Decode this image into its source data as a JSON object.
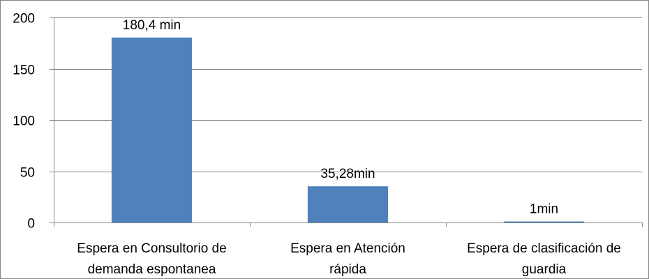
{
  "chart_data": {
    "type": "bar",
    "title": "",
    "xlabel": "",
    "ylabel": "",
    "ylim": [
      0,
      200
    ],
    "yticks": [
      0,
      50,
      100,
      150,
      200
    ],
    "grid": true,
    "legend": "none",
    "bar_color": "#4f81bd",
    "categories": [
      [
        "Espera en Consultorio de",
        "demanda espontanea"
      ],
      [
        "Espera en Atención",
        "rápida"
      ],
      [
        "Espera de clasificación de",
        "guardia"
      ]
    ],
    "values": [
      180.4,
      35.28,
      1
    ],
    "data_labels": [
      "180,4 min",
      "35,28min",
      "1min"
    ]
  }
}
